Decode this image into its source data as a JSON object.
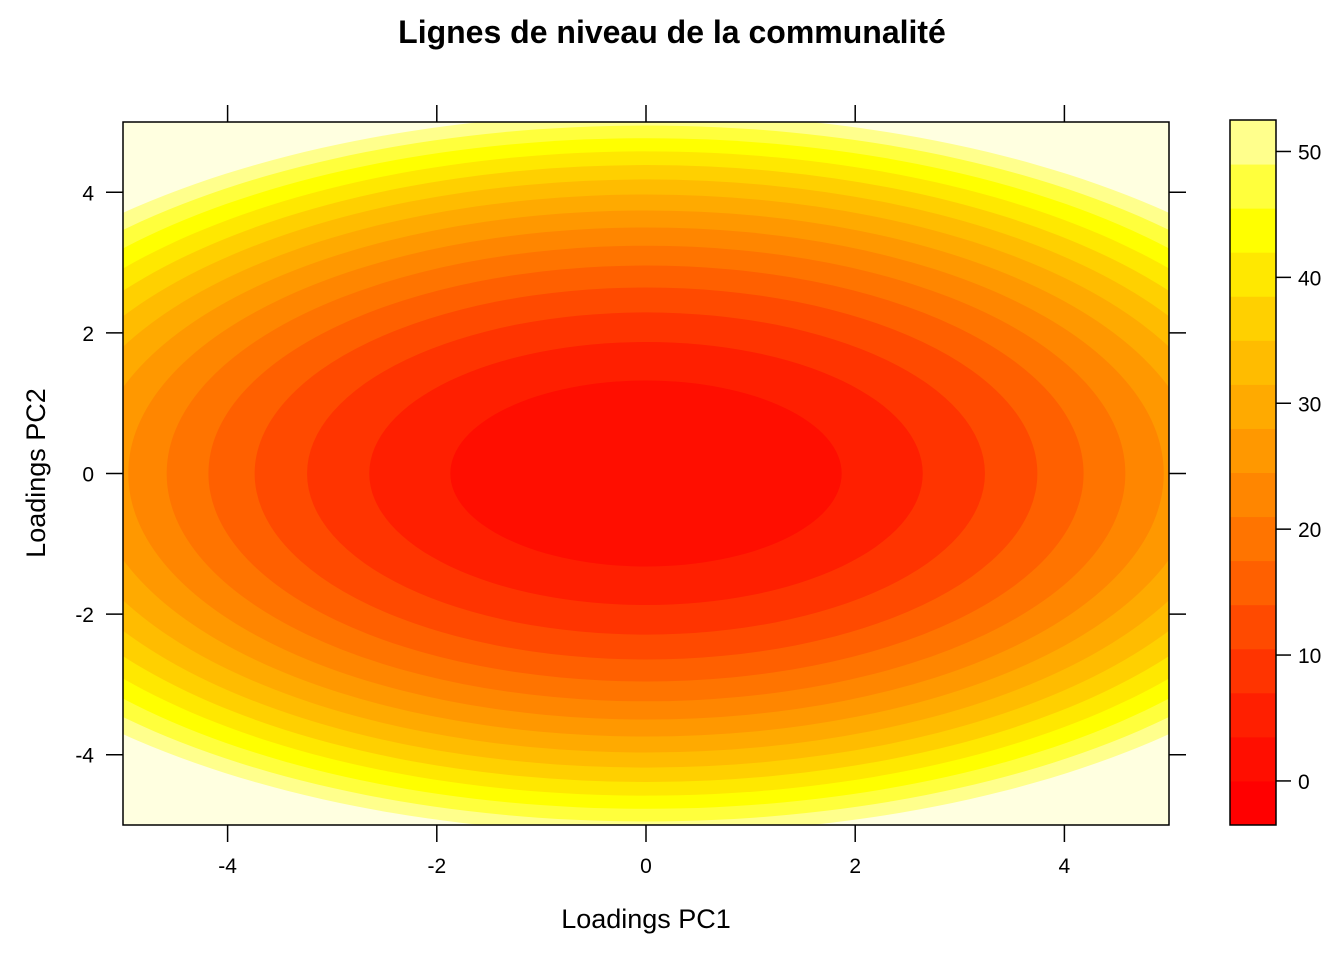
{
  "chart_data": {
    "type": "heatmap",
    "subtype": "contour",
    "title": "Lignes de niveau de la communalité",
    "xlabel": "Loadings PC1",
    "ylabel": "Loadings PC2",
    "xlim": [
      -5,
      5
    ],
    "ylim": [
      -5,
      5
    ],
    "x_ticks": [
      -4,
      -2,
      0,
      2,
      4
    ],
    "y_ticks": [
      -4,
      -2,
      0,
      2,
      4
    ],
    "x_tick_labels": [
      "-4",
      "-2",
      "0",
      "2",
      "4"
    ],
    "y_tick_labels": [
      "-4",
      "-2",
      "0",
      "2",
      "4"
    ],
    "surface": "z = x^2 + 2*y^2",
    "grid": false,
    "colorbar": {
      "position": "right",
      "breaks": [
        -3.5,
        0,
        3.5,
        7,
        10.5,
        14,
        17.5,
        21,
        24.5,
        28,
        31.5,
        35,
        38.5,
        42,
        45.5,
        49,
        52.5
      ],
      "ticks": [
        0,
        10,
        20,
        30,
        40,
        50
      ],
      "tick_labels": [
        "0",
        "10",
        "20",
        "30",
        "40",
        "50"
      ],
      "colors": [
        "#FF0000",
        "#FF0E00",
        "#FF1F00",
        "#FF3400",
        "#FF4A00",
        "#FF6000",
        "#FF7400",
        "#FF8600",
        "#FF9800",
        "#FFAA00",
        "#FFBC00",
        "#FFD000",
        "#FFE800",
        "#FFFF00",
        "#FFFF3C",
        "#FFFF8C",
        "#FFFFE0"
      ]
    }
  }
}
